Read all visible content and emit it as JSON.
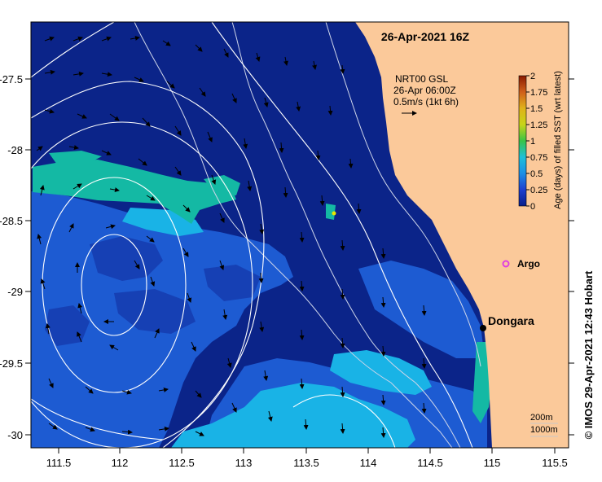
{
  "title": "26-Apr-2021 16Z",
  "current_legend": {
    "line1": "NRT00 GSL",
    "line2": "26-Apr 06:00Z",
    "line3": "0.5m/s (1kt 6h)"
  },
  "colorbar": {
    "label": "Age (days) of filled SST (wrt latest)",
    "ticks": [
      "2",
      "1.75",
      "1.5",
      "1.25",
      "1",
      "0.75",
      "0.5",
      "0.25",
      "0"
    ],
    "colors": [
      "#8a1a00",
      "#c8501a",
      "#d89a1a",
      "#c8d418",
      "#39c447",
      "#1fbf9a",
      "#1fa8dc",
      "#1e5ddf",
      "#0a1f8a"
    ]
  },
  "places": {
    "argo": "Argo",
    "dongara": "Dongara"
  },
  "depth_legend": {
    "line1": "200m",
    "line2": "1000m"
  },
  "credit": "© IMOS 29-Apr-2021 12:43 Hobart",
  "axes": {
    "x_ticks": [
      "111.5",
      "112",
      "112.5",
      "113",
      "113.5",
      "114",
      "114.5",
      "115",
      "115.5"
    ],
    "y_ticks": [
      "-27.5",
      "-28",
      "-28.5",
      "-29",
      "-29.5",
      "-30"
    ]
  },
  "colors": {
    "land": "#fbc99a",
    "deep_age": "#0b2489",
    "mid_age": "#1d5bd2",
    "young_age": "#19b3e6",
    "teal_age": "#14b9a4"
  }
}
